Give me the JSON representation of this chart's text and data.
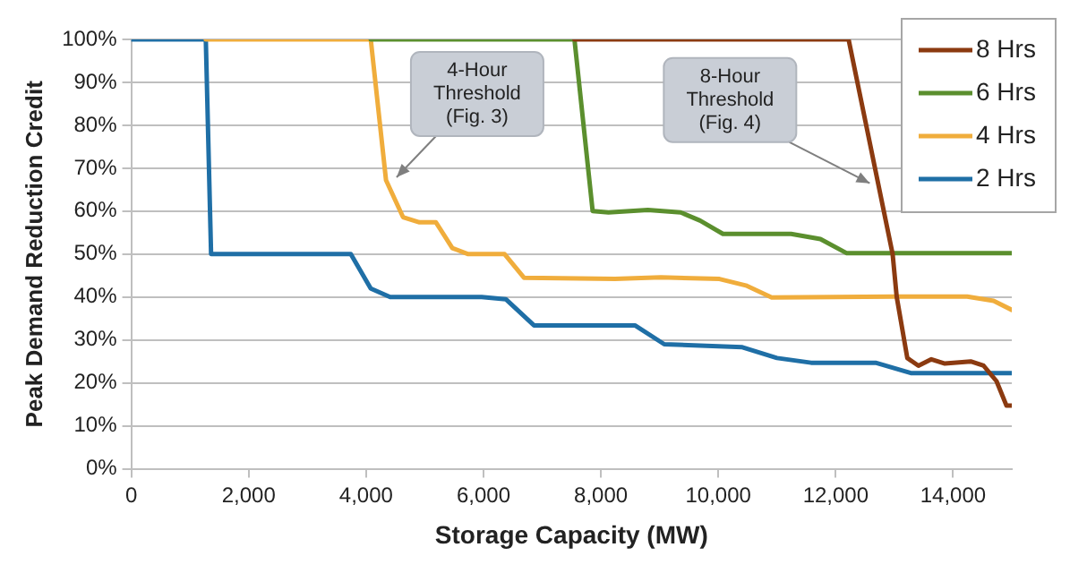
{
  "chart_data": {
    "type": "line",
    "xlabel": "Storage Capacity (MW)",
    "ylabel": "Peak Demand Reduction Credit",
    "xlim": [
      0,
      15000
    ],
    "xticks": [
      0,
      {
        "value": 2000,
        "label": "2,000"
      },
      {
        "value": 4000,
        "label": "4,000"
      },
      {
        "value": 6000,
        "label": "6,000"
      },
      {
        "value": 8000,
        "label": "8,000"
      },
      {
        "value": 10000,
        "label": "10,000"
      },
      {
        "value": 12000,
        "label": "12,000"
      },
      {
        "value": 14000,
        "label": "14,000"
      }
    ],
    "ylim": [
      0,
      100
    ],
    "yticks": [
      {
        "value": 0,
        "label": "0%"
      },
      {
        "value": 10,
        "label": "10%"
      },
      {
        "value": 20,
        "label": "20%"
      },
      {
        "value": 30,
        "label": "30%"
      },
      {
        "value": 40,
        "label": "40%"
      },
      {
        "value": 50,
        "label": "50%"
      },
      {
        "value": 60,
        "label": "60%"
      },
      {
        "value": 70,
        "label": "70%"
      },
      {
        "value": 80,
        "label": "80%"
      },
      {
        "value": 90,
        "label": "90%"
      },
      {
        "value": 100,
        "label": "100%"
      }
    ],
    "grid": "y",
    "legend": "right",
    "marker": "none",
    "line_style": "solid",
    "series": [
      {
        "name": "8 Hrs",
        "color": "#8b3a10",
        "x": [
          7550,
          12220,
          12970,
          13040,
          13220,
          13410,
          13630,
          13860,
          14300,
          14520,
          14740,
          14910,
          15000
        ],
        "values": [
          100,
          100,
          50,
          40,
          25.8,
          24,
          25.5,
          24.5,
          25,
          24,
          20.4,
          14.7,
          14.7
        ]
      },
      {
        "name": "6 Hrs",
        "color": "#5b8f2e",
        "x": [
          4080,
          7550,
          7860,
          8130,
          8800,
          9360,
          9690,
          10080,
          11240,
          11740,
          12190,
          15000
        ],
        "values": [
          100,
          100,
          60,
          59.7,
          60.3,
          59.7,
          57.8,
          54.7,
          54.7,
          53.5,
          50.2,
          50.2
        ]
      },
      {
        "name": "4 Hrs",
        "color": "#f0ad3c",
        "x": [
          1270,
          4080,
          4340,
          4630,
          4910,
          5190,
          5470,
          5740,
          6360,
          6690,
          8240,
          9020,
          10020,
          10470,
          10910,
          13020,
          14240,
          14690,
          15000
        ],
        "values": [
          100,
          100,
          67.2,
          58.6,
          57.4,
          57.4,
          51.4,
          50,
          50,
          44.5,
          44.2,
          44.6,
          44.2,
          42.7,
          39.9,
          40.1,
          40.1,
          39.1,
          37
        ]
      },
      {
        "name": "2 Hrs",
        "color": "#1f6fa6",
        "x": [
          0,
          1270,
          1360,
          3740,
          4080,
          4410,
          5970,
          6380,
          6860,
          8580,
          9080,
          10410,
          11000,
          11580,
          12680,
          13280,
          15000
        ],
        "values": [
          100,
          100,
          50,
          50,
          42,
          40,
          40,
          39.5,
          33.4,
          33.4,
          29,
          28.3,
          25.8,
          24.7,
          24.7,
          22.3,
          22.3
        ]
      }
    ],
    "annotations": [
      {
        "text": "4-Hour Threshold (Fig. 3)",
        "x": 4520,
        "y": 67.9
      },
      {
        "text": "8-Hour Threshold (Fig. 4)",
        "x": 12580,
        "y": 66.5
      }
    ]
  }
}
